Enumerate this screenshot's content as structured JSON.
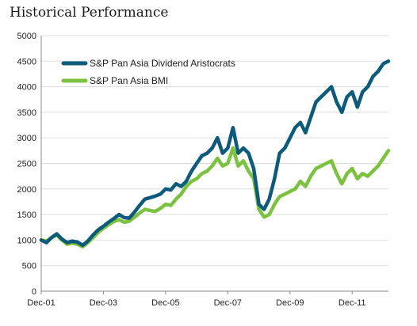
{
  "chart_data": {
    "type": "line",
    "title": "Historical Performance",
    "xlabel": "",
    "ylabel": "",
    "x_tick_labels": [
      "Dec-01",
      "Dec-03",
      "Dec-05",
      "Dec-07",
      "Dec-09",
      "Dec-11"
    ],
    "y_tick_labels": [
      "0",
      "500",
      "1000",
      "1500",
      "2000",
      "2500",
      "3000",
      "3500",
      "4000",
      "4500",
      "5000"
    ],
    "ylim": [
      0,
      5000
    ],
    "grid": true,
    "legend_position": "top-left",
    "x_unit": "months since Dec-01",
    "xlim": [
      0,
      134
    ],
    "series": [
      {
        "name": "S&P Pan Asia Dividend Aristocrats",
        "color": "#0d5a7a",
        "points": [
          [
            0,
            1000
          ],
          [
            2,
            950
          ],
          [
            4,
            1050
          ],
          [
            6,
            1120
          ],
          [
            8,
            1020
          ],
          [
            10,
            950
          ],
          [
            12,
            980
          ],
          [
            14,
            960
          ],
          [
            16,
            900
          ],
          [
            18,
            980
          ],
          [
            20,
            1100
          ],
          [
            22,
            1200
          ],
          [
            24,
            1270
          ],
          [
            26,
            1350
          ],
          [
            28,
            1420
          ],
          [
            30,
            1500
          ],
          [
            32,
            1440
          ],
          [
            34,
            1430
          ],
          [
            36,
            1550
          ],
          [
            38,
            1680
          ],
          [
            40,
            1800
          ],
          [
            42,
            1830
          ],
          [
            44,
            1860
          ],
          [
            46,
            1900
          ],
          [
            48,
            2000
          ],
          [
            50,
            1980
          ],
          [
            52,
            2100
          ],
          [
            54,
            2050
          ],
          [
            56,
            2150
          ],
          [
            58,
            2350
          ],
          [
            60,
            2500
          ],
          [
            62,
            2650
          ],
          [
            64,
            2700
          ],
          [
            66,
            2800
          ],
          [
            68,
            3000
          ],
          [
            70,
            2700
          ],
          [
            72,
            2800
          ],
          [
            74,
            3200
          ],
          [
            76,
            2700
          ],
          [
            78,
            2800
          ],
          [
            80,
            2700
          ],
          [
            82,
            2400
          ],
          [
            84,
            1700
          ],
          [
            86,
            1600
          ],
          [
            88,
            1800
          ],
          [
            90,
            2200
          ],
          [
            92,
            2700
          ],
          [
            94,
            2800
          ],
          [
            96,
            3000
          ],
          [
            98,
            3200
          ],
          [
            100,
            3300
          ],
          [
            102,
            3100
          ],
          [
            104,
            3400
          ],
          [
            106,
            3700
          ],
          [
            108,
            3800
          ],
          [
            110,
            3900
          ],
          [
            112,
            4000
          ],
          [
            114,
            3700
          ],
          [
            116,
            3500
          ],
          [
            118,
            3800
          ],
          [
            120,
            3900
          ],
          [
            122,
            3600
          ],
          [
            124,
            3900
          ],
          [
            126,
            4000
          ],
          [
            128,
            4200
          ],
          [
            130,
            4300
          ],
          [
            132,
            4450
          ],
          [
            134,
            4500
          ]
        ]
      },
      {
        "name": "S&P Pan Asia BMI",
        "color": "#7cc241",
        "points": [
          [
            0,
            1000
          ],
          [
            2,
            980
          ],
          [
            4,
            1050
          ],
          [
            6,
            1100
          ],
          [
            8,
            1000
          ],
          [
            10,
            920
          ],
          [
            12,
            940
          ],
          [
            14,
            920
          ],
          [
            16,
            870
          ],
          [
            18,
            950
          ],
          [
            20,
            1050
          ],
          [
            22,
            1150
          ],
          [
            24,
            1230
          ],
          [
            26,
            1300
          ],
          [
            28,
            1360
          ],
          [
            30,
            1400
          ],
          [
            32,
            1350
          ],
          [
            34,
            1370
          ],
          [
            36,
            1450
          ],
          [
            38,
            1530
          ],
          [
            40,
            1600
          ],
          [
            42,
            1580
          ],
          [
            44,
            1560
          ],
          [
            46,
            1620
          ],
          [
            48,
            1700
          ],
          [
            50,
            1680
          ],
          [
            52,
            1800
          ],
          [
            54,
            1900
          ],
          [
            56,
            2050
          ],
          [
            58,
            2150
          ],
          [
            60,
            2200
          ],
          [
            62,
            2300
          ],
          [
            64,
            2350
          ],
          [
            66,
            2450
          ],
          [
            68,
            2600
          ],
          [
            70,
            2450
          ],
          [
            72,
            2500
          ],
          [
            74,
            2800
          ],
          [
            76,
            2450
          ],
          [
            78,
            2550
          ],
          [
            80,
            2350
          ],
          [
            82,
            2200
          ],
          [
            84,
            1600
          ],
          [
            86,
            1450
          ],
          [
            88,
            1500
          ],
          [
            90,
            1700
          ],
          [
            92,
            1850
          ],
          [
            94,
            1900
          ],
          [
            96,
            1950
          ],
          [
            98,
            2000
          ],
          [
            100,
            2150
          ],
          [
            102,
            2050
          ],
          [
            104,
            2250
          ],
          [
            106,
            2400
          ],
          [
            108,
            2450
          ],
          [
            110,
            2500
          ],
          [
            112,
            2550
          ],
          [
            114,
            2300
          ],
          [
            116,
            2100
          ],
          [
            118,
            2300
          ],
          [
            120,
            2400
          ],
          [
            122,
            2200
          ],
          [
            124,
            2300
          ],
          [
            126,
            2250
          ],
          [
            128,
            2350
          ],
          [
            130,
            2450
          ],
          [
            132,
            2600
          ],
          [
            134,
            2750
          ]
        ]
      }
    ]
  }
}
